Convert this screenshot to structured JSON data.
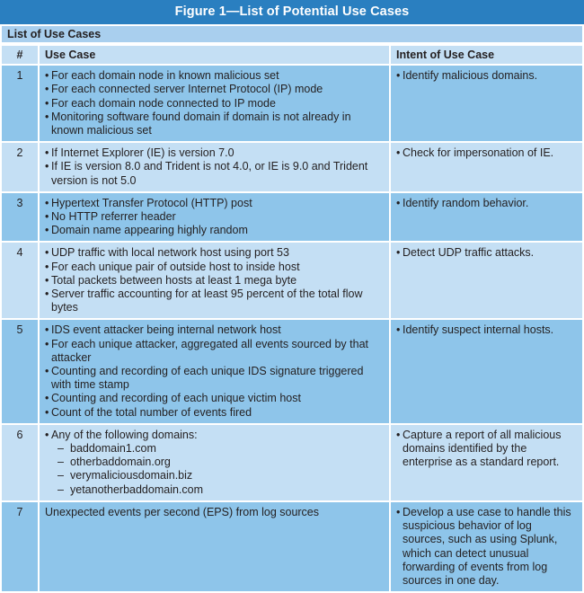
{
  "figure_title": "Figure 1—List of Potential Use Cases",
  "table_caption": "List of Use Cases",
  "headers": {
    "num": "#",
    "use_case": "Use Case",
    "intent": "Intent of Use Case"
  },
  "rows": [
    {
      "num": "1",
      "use_case": [
        "For each domain node in known malicious set",
        "For each connected server Internet Protocol (IP) mode",
        "For each domain node connected to IP mode",
        "Monitoring software found domain if domain is not already in known malicious set"
      ],
      "intent": "Identify malicious domains."
    },
    {
      "num": "2",
      "use_case": [
        "If Internet Explorer (IE) is version 7.0",
        "If IE is version 8.0 and Trident is not 4.0, or IE is 9.0 and Trident version is not 5.0"
      ],
      "intent": "Check for impersonation of IE."
    },
    {
      "num": "3",
      "use_case": [
        "Hypertext Transfer Protocol (HTTP) post",
        "No HTTP referrer header",
        "Domain name appearing highly random"
      ],
      "intent": "Identify random behavior."
    },
    {
      "num": "4",
      "use_case": [
        "UDP traffic with local network host using port 53",
        "For each unique pair of outside host to inside host",
        "Total packets between hosts at least 1 mega byte",
        "Server traffic accounting for at least 95 percent of the total flow bytes"
      ],
      "intent": "Detect UDP traffic attacks."
    },
    {
      "num": "5",
      "use_case": [
        "IDS event attacker being internal network host",
        "For each unique attacker, aggregated all events sourced by that attacker",
        "Counting and recording of each unique IDS signature triggered with time stamp",
        "Counting and recording of each unique victim host",
        "Count of the total number of events fired"
      ],
      "intent": "Identify suspect internal hosts."
    },
    {
      "num": "6",
      "use_case_intro": "Any of the following domains:",
      "domains": [
        "baddomain1.com",
        "otherbaddomain.org",
        "verymaliciousdomain.biz",
        "yetanotherbaddomain.com"
      ],
      "intent": "Capture a report of all malicious domains identified by the enterprise as a standard report."
    },
    {
      "num": "7",
      "use_case_plain": "Unexpected events per second (EPS) from log sources",
      "intent": "Develop a use case to handle this suspicious behavior of log sources, such as using Splunk, which can detect unusual forwarding of events from log sources in one day."
    }
  ]
}
